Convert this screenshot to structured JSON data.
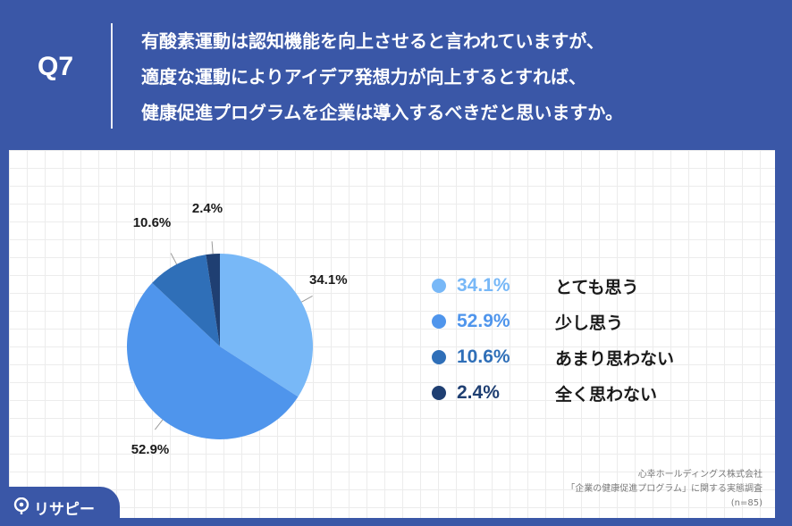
{
  "header": {
    "qnum": "Q7",
    "question_lines": [
      "有酸素運動は認知機能を向上させると言われていますが、",
      "適度な運動によりアイデア発想力が向上するとすれば、",
      "健康促進プログラムを企業は導入するべきだと思いますか。"
    ]
  },
  "chart_data": {
    "type": "pie",
    "categories": [
      "とても思う",
      "少し思う",
      "あまり思わない",
      "全く思わない"
    ],
    "values": [
      34.1,
      52.9,
      10.6,
      2.4
    ],
    "value_labels": [
      "34.1%",
      "52.9%",
      "10.6%",
      "2.4%"
    ],
    "colors": [
      "#78b8f7",
      "#4f95ec",
      "#2f6fb8",
      "#1f3f72"
    ],
    "start_angle": "12 o'clock",
    "direction": "clockwise",
    "legend_position": "right"
  },
  "source": {
    "lines": [
      "心幸ホールディングス株式会社",
      "「企業の健康促進プログラム」に関する実態調査",
      "(n=85)"
    ]
  },
  "logo": {
    "text": "リサピー"
  }
}
